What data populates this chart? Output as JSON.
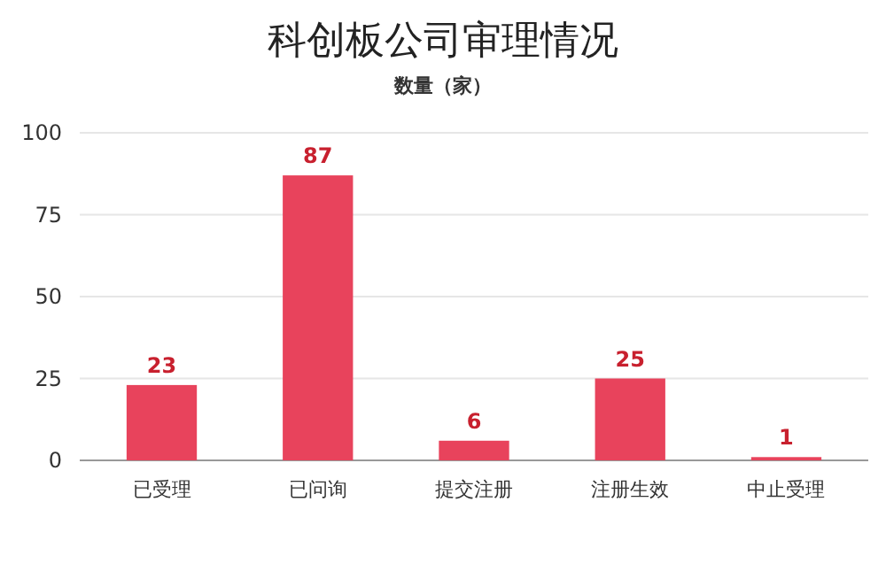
{
  "chart_data": {
    "type": "bar",
    "title": "科创板公司审理情况",
    "subtitle": "数量（家）",
    "categories": [
      "已受理",
      "已问询",
      "提交注册",
      "注册生效",
      "中止受理"
    ],
    "values": [
      23,
      87,
      6,
      25,
      1
    ],
    "color": "#e8435c",
    "ylim": [
      0,
      100
    ],
    "yticks": [
      0,
      25,
      50,
      75,
      100
    ],
    "grid": "y",
    "data_labels": true
  }
}
